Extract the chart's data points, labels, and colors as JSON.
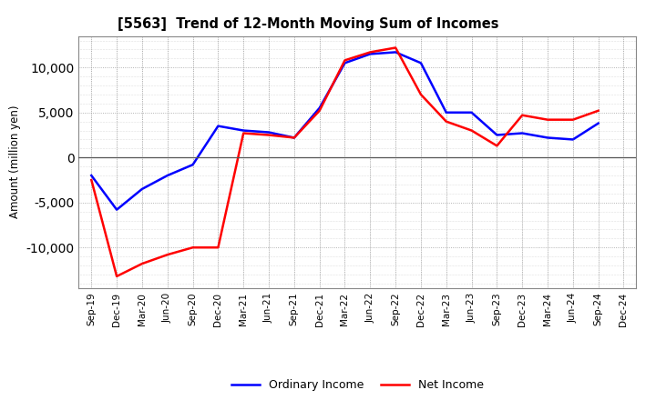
{
  "title": "[5563]  Trend of 12-Month Moving Sum of Incomes",
  "ylabel": "Amount (million yen)",
  "x_labels": [
    "Sep-19",
    "Dec-19",
    "Mar-20",
    "Jun-20",
    "Sep-20",
    "Dec-20",
    "Mar-21",
    "Jun-21",
    "Sep-21",
    "Dec-21",
    "Mar-22",
    "Jun-22",
    "Sep-22",
    "Dec-22",
    "Mar-23",
    "Jun-23",
    "Sep-23",
    "Dec-23",
    "Mar-24",
    "Jun-24",
    "Sep-24",
    "Dec-24"
  ],
  "ordinary_income": [
    -2000,
    -5800,
    -3500,
    -2000,
    -800,
    3500,
    3000,
    2800,
    2200,
    5500,
    10500,
    11500,
    11700,
    10500,
    5000,
    5000,
    2500,
    2700,
    2200,
    2000,
    3800,
    null
  ],
  "net_income": [
    -2500,
    -13200,
    -11800,
    -10800,
    -10000,
    -10000,
    2700,
    2500,
    2200,
    5200,
    10800,
    11700,
    12200,
    7000,
    4000,
    3000,
    1300,
    4700,
    4200,
    4200,
    5200,
    null
  ],
  "ordinary_color": "#0000ff",
  "net_color": "#ff0000",
  "ylim": [
    -14500,
    13500
  ],
  "yticks": [
    -10000,
    -5000,
    0,
    5000,
    10000
  ],
  "background_color": "#ffffff",
  "plot_bg_color": "#ffffff",
  "grid_color": "#888888",
  "line_width": 1.8,
  "legend_labels": [
    "Ordinary Income",
    "Net Income"
  ]
}
